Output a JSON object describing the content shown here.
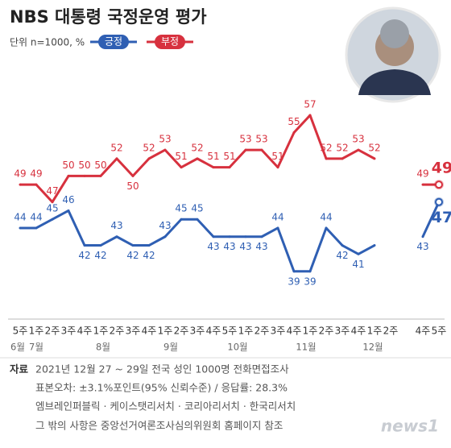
{
  "chart_data": {
    "type": "line",
    "title": "NBS 대통령 국정운영 평가",
    "subtitle": "단위 n=1000, %",
    "categories": [
      "5주",
      "1주",
      "2주",
      "3주",
      "4주",
      "1주",
      "2주",
      "3주",
      "4주",
      "1주",
      "2주",
      "3주",
      "4주",
      "5주",
      "1주",
      "2주",
      "3주",
      "4주",
      "1주",
      "2주",
      "3주",
      "4주",
      "1주",
      "2주",
      null,
      "4주",
      "5주"
    ],
    "month_labels": [
      "6월",
      "7월",
      "8월",
      "9월",
      "10월",
      "11월",
      "12월"
    ],
    "series": [
      {
        "name": "긍정",
        "color": "#2f5fb3",
        "values": [
          44,
          44,
          45,
          46,
          42,
          42,
          43,
          42,
          42,
          43,
          45,
          45,
          43,
          43,
          43,
          43,
          44,
          39,
          39,
          44,
          42,
          41,
          42,
          null,
          null,
          43,
          47
        ]
      },
      {
        "name": "부정",
        "color": "#d7313e",
        "values": [
          49,
          49,
          47,
          50,
          50,
          50,
          52,
          50,
          52,
          53,
          51,
          52,
          51,
          51,
          53,
          53,
          51,
          55,
          57,
          52,
          52,
          53,
          52,
          null,
          null,
          49,
          49
        ]
      }
    ],
    "ylim": [
      33.5,
      61
    ],
    "source_label": "자료",
    "notes": [
      "2021년 12월 27 ~ 29일 전국 성인 1000명 전화면접조사",
      "표본오차: ±3.1%포인트(95% 신뢰수준) / 응답률: 28.3%",
      "엠브레인퍼블릭 · 케이스탯리서치 · 코리아리서치 · 한국리서치",
      "그 밖의 사항은 중앙선거여론조사심의위원회 홈페이지 참조"
    ],
    "logo": "news1"
  }
}
